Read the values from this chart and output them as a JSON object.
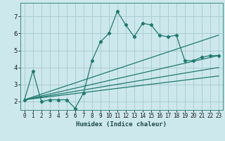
{
  "xlabel": "Humidex (Indice chaleur)",
  "ylabel": "",
  "background_color": "#cde8ec",
  "grid_color": "#aacdd4",
  "line_color": "#1e7a70",
  "xlim": [
    -0.5,
    23.5
  ],
  "ylim": [
    1.5,
    7.8
  ],
  "yticks": [
    2,
    3,
    4,
    5,
    6,
    7
  ],
  "xticks": [
    0,
    1,
    2,
    3,
    4,
    5,
    6,
    7,
    8,
    9,
    10,
    11,
    12,
    13,
    14,
    15,
    16,
    17,
    18,
    19,
    20,
    21,
    22,
    23
  ],
  "series": [
    {
      "x": [
        0,
        1,
        2,
        3,
        4,
        5,
        6,
        7,
        8,
        9,
        10,
        11,
        12,
        13,
        14,
        15,
        16,
        17,
        18,
        19,
        20,
        21,
        22,
        23
      ],
      "y": [
        2.1,
        3.8,
        2.0,
        2.1,
        2.1,
        2.1,
        1.6,
        2.5,
        4.4,
        5.5,
        6.0,
        7.3,
        6.5,
        5.8,
        6.6,
        6.5,
        5.9,
        5.8,
        5.9,
        4.4,
        4.4,
        4.6,
        4.7,
        4.7
      ],
      "marker": true
    },
    {
      "x": [
        0,
        23
      ],
      "y": [
        2.1,
        5.9
      ],
      "marker": false
    },
    {
      "x": [
        0,
        23
      ],
      "y": [
        2.1,
        4.7
      ],
      "marker": false
    },
    {
      "x": [
        0,
        23
      ],
      "y": [
        2.1,
        4.0
      ],
      "marker": false
    },
    {
      "x": [
        0,
        23
      ],
      "y": [
        2.1,
        3.5
      ],
      "marker": false
    }
  ]
}
